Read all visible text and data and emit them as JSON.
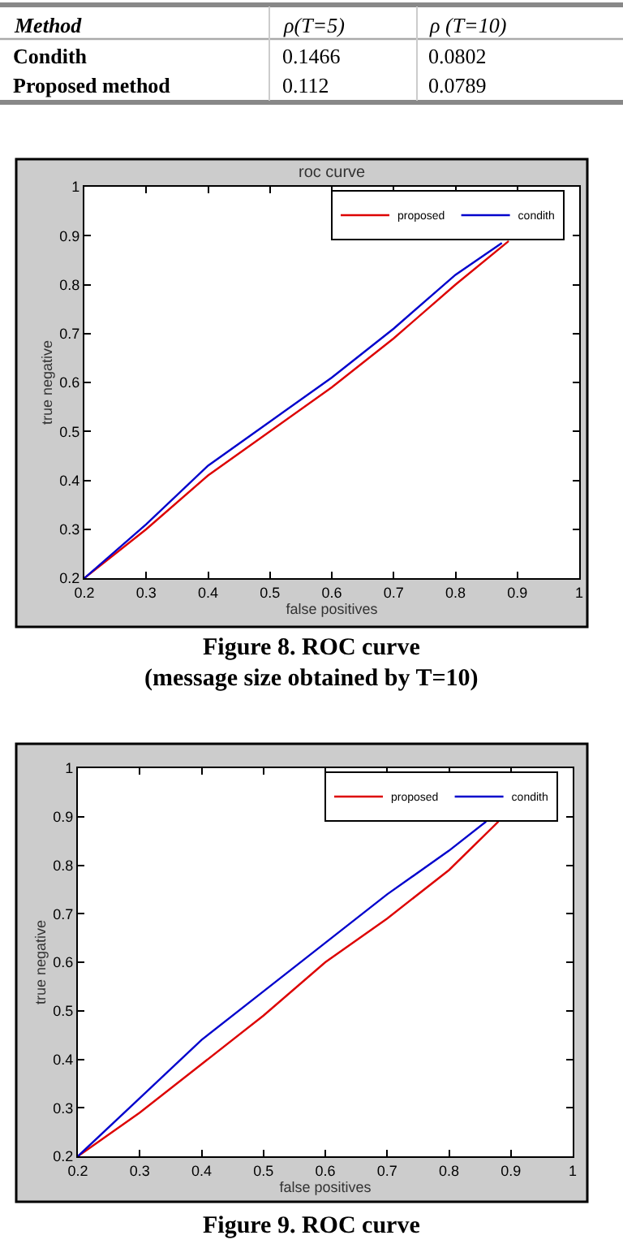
{
  "chart_data": [
    {
      "type": "other",
      "annotations": [
        "Method",
        "ρ(T=5)",
        "ρ (T=10)",
        "Condith",
        "0.1466",
        "0.0802",
        "Proposed method",
        "0.112",
        "0.0789"
      ]
    },
    {
      "type": "line",
      "title": "roc curve",
      "xlabel": "false positives",
      "ylabel": "true negative",
      "xlim": [
        0.2,
        1
      ],
      "ylim": [
        0.2,
        1
      ],
      "xticks": [
        0.2,
        0.3,
        0.4,
        0.5,
        0.6,
        0.7,
        0.8,
        0.9,
        1
      ],
      "yticks": [
        0.2,
        0.3,
        0.4,
        0.5,
        0.6,
        0.7,
        0.8,
        0.9,
        1
      ],
      "grid": false,
      "legend": "top right",
      "annotations": [
        "Figure 8. ROC curve",
        "(message size obtained by T=10)"
      ],
      "series": [
        {
          "name": "proposed",
          "color": "#dd0000",
          "x": [
            0.2,
            0.3,
            0.4,
            0.5,
            0.6,
            0.7,
            0.8,
            0.886
          ],
          "values": [
            0.2,
            0.3,
            0.41,
            0.5,
            0.59,
            0.69,
            0.8,
            0.889
          ]
        },
        {
          "name": "condith",
          "color": "#0000cc",
          "x": [
            0.2,
            0.3,
            0.4,
            0.5,
            0.6,
            0.7,
            0.8,
            0.875
          ],
          "values": [
            0.2,
            0.31,
            0.43,
            0.52,
            0.61,
            0.71,
            0.82,
            0.885
          ]
        }
      ]
    },
    {
      "type": "line",
      "xlabel": "false positives",
      "ylabel": "true negative",
      "xlim": [
        0.2,
        1
      ],
      "ylim": [
        0.2,
        1
      ],
      "xticks": [
        0.2,
        0.3,
        0.4,
        0.5,
        0.6,
        0.7,
        0.8,
        0.9,
        1
      ],
      "yticks": [
        0.2,
        0.3,
        0.4,
        0.5,
        0.6,
        0.7,
        0.8,
        0.9,
        1
      ],
      "grid": false,
      "legend": "top right",
      "annotations": [
        "Figure 9. ROC curve"
      ],
      "series": [
        {
          "name": "proposed",
          "color": "#dd0000",
          "x": [
            0.2,
            0.3,
            0.4,
            0.5,
            0.6,
            0.7,
            0.8,
            0.88
          ],
          "values": [
            0.2,
            0.29,
            0.39,
            0.49,
            0.6,
            0.69,
            0.79,
            0.89
          ]
        },
        {
          "name": "condith",
          "color": "#0000cc",
          "x": [
            0.2,
            0.3,
            0.4,
            0.5,
            0.6,
            0.7,
            0.8,
            0.86
          ],
          "values": [
            0.2,
            0.32,
            0.44,
            0.54,
            0.64,
            0.74,
            0.83,
            0.89
          ]
        }
      ]
    }
  ]
}
